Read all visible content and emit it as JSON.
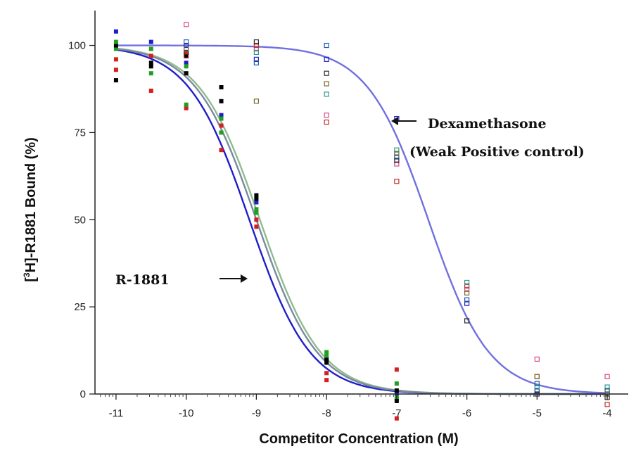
{
  "chart_data": {
    "type": "scatter",
    "title": "",
    "xlabel": "Competitor Concentration (M)",
    "ylabel_prefix": "[",
    "ylabel_sup": "3",
    "ylabel_suffix": "H]-R1881 Bound (%)",
    "xlim": [
      -11.3,
      -3.7
    ],
    "ylim": [
      0,
      110
    ],
    "x_ticks": [
      -11,
      -10,
      -9,
      -8,
      -7,
      -6,
      -5,
      -4
    ],
    "x_tick_labels": [
      "-11",
      "-10",
      "-9",
      "-8",
      "-7",
      "-6",
      "-5",
      "-4"
    ],
    "y_ticks": [
      0,
      25,
      50,
      75,
      100
    ],
    "y_tick_labels": [
      "0",
      "25",
      "50",
      "75",
      "100"
    ],
    "grid": false,
    "annotations": [
      {
        "text": "Dexamethasone",
        "arrow": "left"
      },
      {
        "text": "(Weak Positive control)"
      },
      {
        "text": "R-1881",
        "arrow": "right"
      }
    ],
    "curves": [
      {
        "color": "#1f1fc8",
        "logIC50": -9.1,
        "hill": 1.0
      },
      {
        "color": "#8fbc8f",
        "logIC50": -8.95,
        "hill": 1.0
      },
      {
        "color": "#7a8aa0",
        "logIC50": -9.0,
        "hill": 1.0
      },
      {
        "color": "#7070e0",
        "logIC50": -6.55,
        "hill": 1.0
      }
    ],
    "series": [
      {
        "color": "#1f1fc8",
        "marker": "filled",
        "points": [
          [
            -11,
            104
          ],
          [
            -10.5,
            101
          ],
          [
            -10,
            95
          ],
          [
            -9.5,
            80
          ],
          [
            -9,
            55
          ],
          [
            -8,
            10
          ],
          [
            -7,
            0
          ]
        ]
      },
      {
        "color": "#d42020",
        "marker": "filled",
        "points": [
          [
            -11,
            93
          ],
          [
            -10.5,
            87
          ],
          [
            -10,
            82
          ],
          [
            -9.5,
            70
          ],
          [
            -9,
            50
          ],
          [
            -8,
            4
          ],
          [
            -7,
            7
          ]
        ]
      },
      {
        "color": "#20a020",
        "marker": "filled",
        "points": [
          [
            -11,
            99
          ],
          [
            -10.5,
            92
          ],
          [
            -10,
            83
          ],
          [
            -9.5,
            75
          ],
          [
            -9,
            52
          ],
          [
            -8,
            12
          ],
          [
            -7,
            -1
          ]
        ]
      },
      {
        "color": "#000000",
        "marker": "filled",
        "points": [
          [
            -11,
            100
          ],
          [
            -10.5,
            94
          ],
          [
            -10,
            92
          ],
          [
            -9.5,
            84
          ],
          [
            -9,
            56
          ],
          [
            -8,
            10
          ],
          [
            -7,
            -2
          ]
        ]
      },
      {
        "color": "#d42020",
        "marker": "filled",
        "points": [
          [
            -11,
            96
          ],
          [
            -10.5,
            97
          ],
          [
            -10,
            98
          ],
          [
            -9.5,
            77
          ],
          [
            -9,
            48
          ],
          [
            -8,
            6
          ],
          [
            -7,
            -7
          ]
        ]
      },
      {
        "color": "#20a020",
        "marker": "filled",
        "points": [
          [
            -11,
            101
          ],
          [
            -10.5,
            99
          ],
          [
            -10,
            94
          ],
          [
            -9.5,
            79
          ],
          [
            -9,
            53
          ],
          [
            -8,
            11
          ],
          [
            -7,
            3
          ]
        ]
      },
      {
        "color": "#000000",
        "marker": "filled",
        "points": [
          [
            -11,
            90
          ],
          [
            -10.5,
            95
          ],
          [
            -10,
            97
          ],
          [
            -9.5,
            88
          ],
          [
            -9,
            57
          ],
          [
            -8,
            9
          ],
          [
            -7,
            1
          ]
        ]
      },
      {
        "color": "#1f1fc8",
        "marker": "open",
        "points": [
          [
            -10,
            100
          ],
          [
            -9,
            96
          ],
          [
            -8,
            96
          ],
          [
            -7,
            79
          ],
          [
            -6,
            26
          ],
          [
            -5,
            1
          ],
          [
            -4,
            0
          ]
        ]
      },
      {
        "color": "#d44a8a",
        "marker": "open",
        "points": [
          [
            -10,
            106
          ],
          [
            -9,
            99
          ],
          [
            -8,
            80
          ],
          [
            -7,
            66
          ],
          [
            -6,
            30
          ],
          [
            -5,
            10
          ],
          [
            -4,
            5
          ]
        ]
      },
      {
        "color": "#c0302a",
        "marker": "open",
        "points": [
          [
            -10,
            97
          ],
          [
            -9,
            100
          ],
          [
            -8,
            78
          ],
          [
            -7,
            61
          ],
          [
            -6,
            31
          ],
          [
            -5,
            5
          ],
          [
            -4,
            -3
          ]
        ]
      },
      {
        "color": "#2a9a8a",
        "marker": "open",
        "points": [
          [
            -10,
            99
          ],
          [
            -9,
            98
          ],
          [
            -8,
            86
          ],
          [
            -7,
            70
          ],
          [
            -6,
            32
          ],
          [
            -5,
            2
          ],
          [
            -4,
            2
          ]
        ]
      },
      {
        "color": "#1f5ab0",
        "marker": "open",
        "points": [
          [
            -10,
            101
          ],
          [
            -9,
            95
          ],
          [
            -8,
            100
          ],
          [
            -7,
            68
          ],
          [
            -6,
            27
          ],
          [
            -5,
            3
          ],
          [
            -4,
            1
          ]
        ]
      },
      {
        "color": "#2b2b2b",
        "marker": "open",
        "points": [
          [
            -10,
            98
          ],
          [
            -9,
            101
          ],
          [
            -8,
            92
          ],
          [
            -7,
            67
          ],
          [
            -6,
            21
          ],
          [
            -5,
            0
          ],
          [
            -4,
            -1
          ]
        ]
      },
      {
        "color": "#7a6a30",
        "marker": "open",
        "points": [
          [
            -10,
            99
          ],
          [
            -9,
            84
          ],
          [
            -8,
            89
          ],
          [
            -7,
            69
          ],
          [
            -6,
            29
          ],
          [
            -5,
            5
          ],
          [
            -4,
            0
          ]
        ]
      }
    ]
  }
}
